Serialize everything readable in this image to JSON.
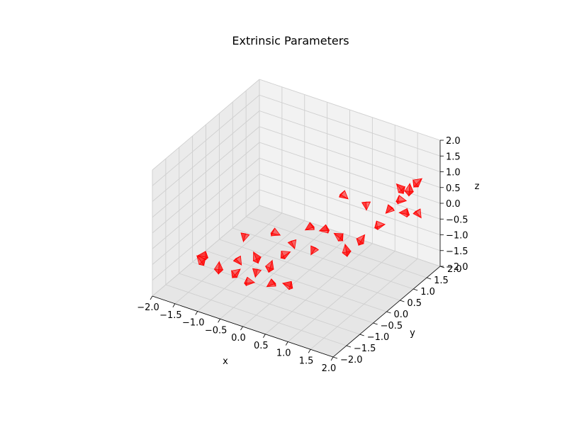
{
  "chart_data": {
    "type": "3d-scatter",
    "title": "Extrinsic Parameters",
    "xlabel": "x",
    "ylabel": "y",
    "zlabel": "z",
    "xlim": [
      -2.0,
      2.0
    ],
    "ylim": [
      -2.0,
      2.0
    ],
    "zlim": [
      -2.0,
      2.0
    ],
    "x_ticks": [
      "−2.0",
      "−1.5",
      "−1.0",
      "−0.5",
      "0.0",
      "0.5",
      "1.0",
      "1.5",
      "2.0"
    ],
    "y_ticks": [
      "−2.0",
      "−1.5",
      "−1.0",
      "−0.5",
      "0.0",
      "0.5",
      "1.0",
      "1.5",
      "2.0"
    ],
    "z_ticks": [
      "−2.0",
      "−1.5",
      "−1.0",
      "−0.5",
      "0.0",
      "0.5",
      "1.0",
      "1.5",
      "2.0"
    ],
    "grid": true,
    "marker": "camera-frustum",
    "marker_color": "#ff0000",
    "pane_colors": {
      "back": "#f2f2f2",
      "side": "#ebebeb",
      "floor": "#e6e6e6"
    },
    "series": [
      {
        "x": [
          -1.4,
          -1.5,
          -1.0,
          -0.7,
          -0.4,
          -0.6,
          -0.3,
          0.0,
          0.3,
          -0.5,
          -0.2,
          0.1,
          -0.3,
          0.0,
          0.3,
          0.4,
          0.6,
          0.8,
          1.0,
          1.3,
          0.5,
          0.9,
          1.2,
          1.4,
          1.2,
          1.5,
          1.6,
          1.3,
          1.6,
          -0.8,
          0.2
        ],
        "y": [
          -1.2,
          -1.1,
          -1.2,
          -1.0,
          -1.0,
          -1.1,
          -1.0,
          -1.0,
          -0.9,
          -0.7,
          -0.6,
          -0.5,
          -0.2,
          -0.1,
          0.1,
          0.3,
          0.5,
          0.5,
          0.8,
          1.0,
          1.0,
          1.1,
          1.4,
          1.6,
          1.8,
          1.7,
          1.9,
          1.8,
          1.9,
          -0.6,
          0.1
        ],
        "z": [
          -1.0,
          -1.2,
          -1.1,
          -1.3,
          -1.5,
          -0.9,
          -1.2,
          -1.4,
          -1.3,
          -0.9,
          -1.1,
          -0.7,
          -0.5,
          -0.8,
          -1.0,
          -0.4,
          -0.6,
          -0.9,
          -0.7,
          -0.3,
          0.2,
          0.0,
          -0.2,
          -0.3,
          0.3,
          0.5,
          0.6,
          -0.1,
          -0.5,
          -0.6,
          -0.3
        ]
      }
    ]
  }
}
